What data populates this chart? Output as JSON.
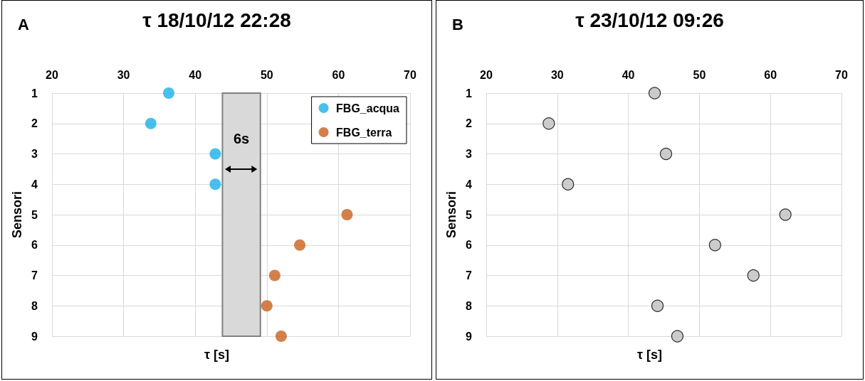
{
  "chart_data": [
    {
      "type": "scatter",
      "title": "τ 18/10/12 22:28",
      "xlabel": "τ [s]",
      "ylabel": "Sensori",
      "annotations": [
        "A"
      ],
      "xlim": [
        20,
        70
      ],
      "xticks": [
        20,
        30,
        40,
        50,
        60,
        70
      ],
      "ylim": [
        9,
        1
      ],
      "yticks": [
        1,
        2,
        3,
        4,
        5,
        6,
        7,
        8,
        9
      ],
      "grid": true,
      "legend": "top right",
      "marker": "circle",
      "bands": [
        {
          "axis": "x",
          "from": 43.8,
          "to": 49.1,
          "label": "6s",
          "color": "#d9d9d9"
        }
      ],
      "series": [
        {
          "name": "FBG_acqua",
          "color": "#1ab0e8",
          "x": [
            36.3,
            33.8,
            42.8,
            42.8
          ],
          "values": [
            1,
            2,
            3,
            4
          ]
        },
        {
          "name": "FBG_terra",
          "color": "#c8601e",
          "x": [
            61.2,
            54.6,
            51.1,
            50.0,
            52.0
          ],
          "values": [
            5,
            6,
            7,
            8,
            9
          ]
        }
      ]
    },
    {
      "type": "scatter",
      "title": "τ 23/10/12 09:26",
      "xlabel": "τ [s]",
      "ylabel": "Sensori",
      "annotations": [
        "B"
      ],
      "xlim": [
        20,
        70
      ],
      "xticks": [
        20,
        30,
        40,
        50,
        60,
        70
      ],
      "ylim": [
        9,
        1
      ],
      "yticks": [
        1,
        2,
        3,
        4,
        5,
        6,
        7,
        8,
        9
      ],
      "grid": true,
      "legend": false,
      "marker": "circle",
      "series": [
        {
          "color": "#bfbfbf",
          "x": [
            43.7,
            28.8,
            45.3,
            31.5,
            62.1,
            52.2,
            57.6,
            44.1,
            46.9
          ],
          "values": [
            1,
            2,
            3,
            4,
            5,
            6,
            7,
            8,
            9
          ]
        }
      ]
    }
  ]
}
